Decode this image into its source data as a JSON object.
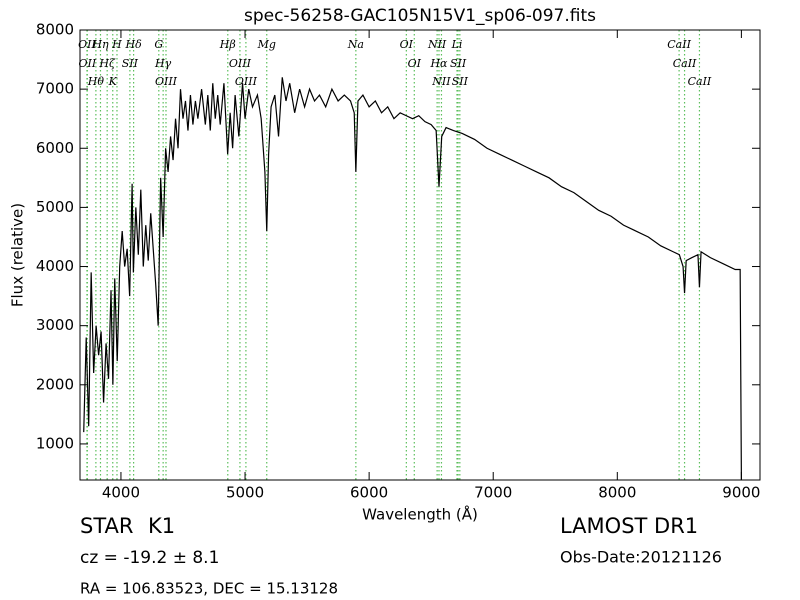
{
  "chart_data": {
    "type": "line",
    "title": "spec-56258-GAC105N15V1_sp06-097.fits",
    "x_label": "Wavelength (Å)",
    "y_label": "Flux (relative)",
    "xlim": [
      3670,
      9150
    ],
    "ylim": [
      390,
      8000
    ],
    "xticks": [
      4000,
      5000,
      6000,
      7000,
      8000,
      9000
    ],
    "yticks": [
      1000,
      2000,
      3000,
      4000,
      5000,
      6000,
      7000,
      8000
    ],
    "color": "#000000",
    "line_color": "#5cbf5c",
    "x": [
      3700,
      3720,
      3740,
      3760,
      3780,
      3800,
      3820,
      3840,
      3860,
      3880,
      3900,
      3920,
      3935,
      3950,
      3970,
      3990,
      4010,
      4030,
      4050,
      4070,
      4090,
      4100,
      4120,
      4140,
      4160,
      4180,
      4200,
      4220,
      4240,
      4260,
      4280,
      4300,
      4320,
      4340,
      4360,
      4380,
      4400,
      4420,
      4440,
      4460,
      4480,
      4500,
      4520,
      4540,
      4560,
      4580,
      4600,
      4620,
      4650,
      4680,
      4700,
      4720,
      4740,
      4760,
      4780,
      4800,
      4830,
      4860,
      4880,
      4900,
      4920,
      4950,
      4980,
      5000,
      5030,
      5060,
      5100,
      5130,
      5160,
      5175,
      5190,
      5210,
      5240,
      5270,
      5300,
      5330,
      5360,
      5400,
      5440,
      5480,
      5520,
      5560,
      5600,
      5650,
      5700,
      5750,
      5800,
      5850,
      5880,
      5893,
      5910,
      5950,
      6000,
      6050,
      6100,
      6150,
      6200,
      6250,
      6300,
      6350,
      6400,
      6450,
      6500,
      6540,
      6563,
      6585,
      6620,
      6680,
      6750,
      6850,
      6950,
      7050,
      7150,
      7250,
      7350,
      7450,
      7550,
      7650,
      7750,
      7850,
      7950,
      8050,
      8150,
      8250,
      8350,
      8450,
      8500,
      8530,
      8542,
      8555,
      8600,
      8650,
      8662,
      8675,
      8750,
      8850,
      8950,
      8990,
      9000
    ],
    "values": [
      1200,
      2800,
      1300,
      3900,
      2200,
      3000,
      2500,
      2900,
      1700,
      2700,
      2100,
      3600,
      2000,
      3800,
      2400,
      4000,
      4600,
      4000,
      4300,
      3500,
      5400,
      3900,
      5000,
      4200,
      5300,
      4000,
      4700,
      4100,
      4900,
      4300,
      3700,
      3000,
      5500,
      4500,
      6000,
      5600,
      6200,
      5800,
      6500,
      6000,
      7000,
      6500,
      6800,
      6300,
      6900,
      6400,
      6800,
      6500,
      7000,
      6400,
      6900,
      6300,
      7100,
      6500,
      6900,
      6400,
      7100,
      5900,
      6600,
      6000,
      6900,
      6200,
      7100,
      6500,
      7000,
      6700,
      6900,
      6500,
      5600,
      4600,
      5900,
      6700,
      6900,
      6200,
      7200,
      6800,
      7100,
      6600,
      7000,
      6700,
      7000,
      6800,
      6900,
      6700,
      7000,
      6800,
      6900,
      6800,
      6600,
      5600,
      6800,
      6900,
      6700,
      6800,
      6600,
      6700,
      6500,
      6600,
      6550,
      6500,
      6550,
      6450,
      6400,
      6300,
      5350,
      6200,
      6350,
      6300,
      6250,
      6150,
      6000,
      5900,
      5800,
      5700,
      5600,
      5500,
      5350,
      5250,
      5100,
      4950,
      4850,
      4700,
      4600,
      4500,
      4350,
      4250,
      4200,
      4000,
      3550,
      4100,
      4150,
      4200,
      3650,
      4250,
      4150,
      4050,
      3950,
      3950,
      400
    ],
    "lines": [
      {
        "label": "OII",
        "wavelength": 3726
      },
      {
        "label": "OII",
        "wavelength": 3729
      },
      {
        "label": "Hθ",
        "wavelength": 3798
      },
      {
        "label": "Hη",
        "wavelength": 3835
      },
      {
        "label": "Hζ",
        "wavelength": 3889
      },
      {
        "label": "K",
        "wavelength": 3934
      },
      {
        "label": "H",
        "wavelength": 3968
      },
      {
        "label": "SII",
        "wavelength": 4072
      },
      {
        "label": "Hδ",
        "wavelength": 4102
      },
      {
        "label": "G",
        "wavelength": 4305
      },
      {
        "label": "Hγ",
        "wavelength": 4340
      },
      {
        "label": "OIII",
        "wavelength": 4363
      },
      {
        "label": "Hβ",
        "wavelength": 4861
      },
      {
        "label": "OIII",
        "wavelength": 4959
      },
      {
        "label": "OIII",
        "wavelength": 5007
      },
      {
        "label": "Mg",
        "wavelength": 5175
      },
      {
        "label": "Na",
        "wavelength": 5893
      },
      {
        "label": "OI",
        "wavelength": 6300
      },
      {
        "label": "OI",
        "wavelength": 6364
      },
      {
        "label": "NII",
        "wavelength": 6548
      },
      {
        "label": "Hα",
        "wavelength": 6563
      },
      {
        "label": "NII",
        "wavelength": 6583
      },
      {
        "label": "Li",
        "wavelength": 6708
      },
      {
        "label": "SII",
        "wavelength": 6717
      },
      {
        "label": "SII",
        "wavelength": 6731
      },
      {
        "label": "CaII",
        "wavelength": 8498
      },
      {
        "label": "CaII",
        "wavelength": 8542
      },
      {
        "label": "CaII",
        "wavelength": 8662
      }
    ],
    "class": "STAR",
    "subclass": "K1",
    "survey": "LAMOST DR1",
    "redshift": "cz = -19.2 ± 8.1",
    "obs_date": "Obs-Date:20121126",
    "coords": "RA = 106.83523, DEC = 15.13128"
  }
}
